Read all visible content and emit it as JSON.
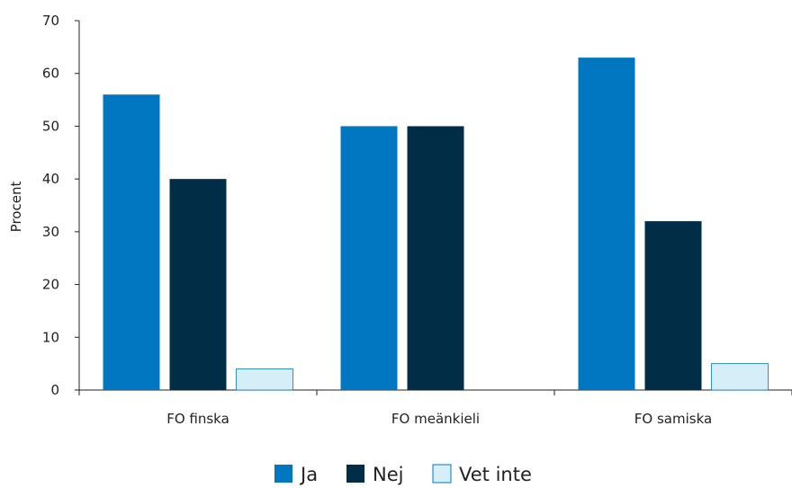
{
  "chart_data": {
    "type": "bar",
    "ylabel": "Procent",
    "ylim": [
      0,
      70
    ],
    "yticks": [
      0,
      10,
      20,
      30,
      40,
      50,
      60,
      70
    ],
    "categories": [
      "FO finska",
      "FO meänkieli",
      "FO samiska"
    ],
    "series": [
      {
        "name": "Ja",
        "color": "#0077c0",
        "values": [
          56,
          50,
          63
        ]
      },
      {
        "name": "Nej",
        "color": "#022d46",
        "values": [
          40,
          50,
          32
        ]
      },
      {
        "name": "Vet inte",
        "color": "#d6eef7",
        "values": [
          4,
          0,
          5
        ]
      }
    ],
    "grid": false,
    "legend_position": "bottom-center"
  }
}
